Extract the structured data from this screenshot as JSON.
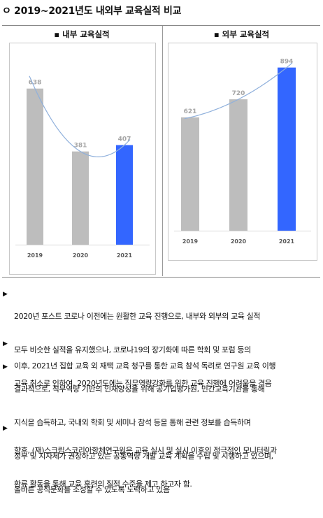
{
  "title": "ㅇ 2019~2021년도 내외부 교육실적 비교",
  "bullet_mark": "▶",
  "charts": [
    {
      "header": "▪ 내부 교육실적"
    },
    {
      "header": "▪ 외부 교육실적"
    }
  ],
  "chart_data": [
    {
      "type": "bar",
      "title": "▪ 내부 교육실적",
      "categories": [
        "2019",
        "2020",
        "2021"
      ],
      "values": [
        638,
        381,
        407
      ],
      "highlight_category": "2021",
      "bar_colors": [
        "#bdbdbd",
        "#bdbdbd",
        "#3366ff"
      ],
      "trendline": "polynomial",
      "trendline_color": "#8fb0dc",
      "label_color": "#a6a6a6",
      "ylim": [
        0,
        700
      ],
      "grid": false,
      "legend": "none"
    },
    {
      "type": "bar",
      "title": "▪ 외부 교육실적",
      "categories": [
        "2019",
        "2020",
        "2021"
      ],
      "values": [
        621,
        720,
        894
      ],
      "highlight_category": "2021",
      "bar_colors": [
        "#bdbdbd",
        "#bdbdbd",
        "#3366ff"
      ],
      "trendline": "polynomial",
      "trendline_color": "#8fb0dc",
      "label_color": "#a6a6a6",
      "ylim": [
        0,
        950
      ],
      "grid": false,
      "legend": "none"
    }
  ],
  "bullets": [
    {
      "lines": [
        "2020년 포스트 코로나 이전에는 원활한 교육 진행으로, 내부와 외부의 교육 실적",
        "모두 비슷한 실적을 유지했으나, 코로나19의 장기화에 따른 학회 및 포럼 등의",
        "교육 취소로 인하여, 2020년도에는 직무역량강화를 위한 교육 진행에 어려움을 겪음"
      ]
    },
    {
      "lines": [
        "이후, 2021년 집합 교육 외 재택 교육 청구를 통한 교육 참석 독려로 연구원 교육 이행"
      ]
    },
    {
      "lines": [
        "결과적으로, 직무역량 기반의 인재양성을 위해 공기업평가원, 민간교육기관을 통해",
        "지식을 습득하고, 국내외 학회 및 세미나 참석 등을 통해 관련 정보를 습득하며",
        "정부 및 지자체가 권장하고 있는 공통역량 개발 교육 계획을 수립 및 시행하고 있으며,",
        "올바른 공직문화를 조성할 수 있도록 노력하고 있음"
      ]
    },
    {
      "lines": [
        "향후, (재)스크립스코리아항체연구원은 교육 실시 및 실시 이후의 적극적인 모니터링과",
        "환류 활동을 통해 교육 훈련의 질적 수준을 제고 하고자 함."
      ]
    }
  ]
}
